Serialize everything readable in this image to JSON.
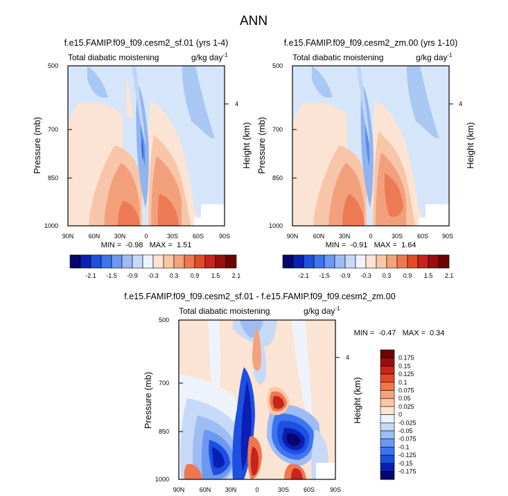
{
  "figure": {
    "title": "ANN"
  },
  "panels": [
    {
      "title": "f.e15.FAMIP.f09_f09.cesm2_sf.01 (yrs 1-4)",
      "left_label": "Total diabatic moistening",
      "units_label": "g/kg day",
      "units_exp": "-1",
      "ylabel": "Pressure (mb)",
      "y2label": "Height (km)",
      "stats": "MIN =  -0.98   MAX =  1.51"
    },
    {
      "title": "f.e15.FAMIP.f09_f09.cesm2_zm.00 (yrs 1-10)",
      "left_label": "Total diabatic moistening",
      "units_label": "g/kg day",
      "units_exp": "-1",
      "ylabel": "Pressure (mb)",
      "y2label": "Height (km)",
      "stats": "MIN =  -0.91   MAX =  1.64"
    },
    {
      "title": "f.e15.FAMIP.f09_f09.cesm2_sf.01 - f.e15.FAMIP.f09_f09.cesm2_zm.00",
      "left_label": "Total diabatic moistening",
      "units_label": "g/kg day",
      "units_exp": "-1",
      "ylabel": "Pressure (mb)",
      "y2label": "Height (km)",
      "stats": "MIN =  -0.47   MAX =  0.34"
    }
  ],
  "axes": {
    "x_ticks": [
      "90N",
      "60N",
      "30N",
      "0",
      "30S",
      "60S",
      "90S"
    ],
    "y_ticks": [
      "500",
      "700",
      "850",
      "1000"
    ],
    "y2_ticks": [
      "4"
    ]
  },
  "colorbars": {
    "main_ticks": [
      "-2.1",
      "-1.5",
      "-0.9",
      "-0.3",
      "0.3",
      "0.9",
      "1.5",
      "2.1"
    ],
    "main_colors": [
      "#06066e",
      "#0a1fb4",
      "#1d4fe0",
      "#3d74f0",
      "#6b98f2",
      "#9dbcf4",
      "#c6d9f7",
      "#eef3fb",
      "#fde4d1",
      "#f9c7a6",
      "#f5a27a",
      "#ef774f",
      "#e54a28",
      "#c9241b",
      "#9c0d0d",
      "#6e0303"
    ],
    "diff_ticks": [
      "0.175",
      "0.15",
      "0.125",
      "0.1",
      "0.075",
      "0.05",
      "0.025",
      "0",
      "-0.025",
      "-0.05",
      "-0.075",
      "-0.1",
      "-0.125",
      "-0.15",
      "-0.175"
    ],
    "diff_colors": [
      "#6e0303",
      "#9c0d0d",
      "#c9241b",
      "#e54a28",
      "#ef774f",
      "#f5a27a",
      "#f9c7a6",
      "#fde4d1",
      "#eef3fb",
      "#c6d9f7",
      "#9dbcf4",
      "#6b98f2",
      "#3d74f0",
      "#1d4fe0",
      "#0a1fb4",
      "#06066e"
    ]
  },
  "chart_data": [
    {
      "type": "heatmap",
      "title": "f.e15.FAMIP.f09_f09.cesm2_sf.01 (yrs 1-4)",
      "variable": "Total diabatic moistening",
      "units": "g/kg day-1",
      "x": [
        "90N",
        "60N",
        "30N",
        "0",
        "30S",
        "60S",
        "90S"
      ],
      "y": [
        500,
        700,
        850,
        1000
      ],
      "y_scale": "log-pressure",
      "min": -0.98,
      "max": 1.51,
      "colorbar_levels": [
        -2.1,
        -1.5,
        -0.9,
        -0.3,
        0.3,
        0.9,
        1.5,
        2.1
      ]
    },
    {
      "type": "heatmap",
      "title": "f.e15.FAMIP.f09_f09.cesm2_zm.00 (yrs 1-10)",
      "variable": "Total diabatic moistening",
      "units": "g/kg day-1",
      "x": [
        "90N",
        "60N",
        "30N",
        "0",
        "30S",
        "60S",
        "90S"
      ],
      "y": [
        500,
        700,
        850,
        1000
      ],
      "y_scale": "log-pressure",
      "min": -0.91,
      "max": 1.64,
      "colorbar_levels": [
        -2.1,
        -1.5,
        -0.9,
        -0.3,
        0.3,
        0.9,
        1.5,
        2.1
      ]
    },
    {
      "type": "heatmap",
      "title": "f.e15.FAMIP.f09_f09.cesm2_sf.01 - f.e15.FAMIP.f09_f09.cesm2_zm.00",
      "variable": "Total diabatic moistening",
      "units": "g/kg day-1",
      "x": [
        "90N",
        "60N",
        "30N",
        "0",
        "30S",
        "60S",
        "90S"
      ],
      "y": [
        500,
        700,
        850,
        1000
      ],
      "y_scale": "log-pressure",
      "min": -0.47,
      "max": 0.34,
      "colorbar_levels": [
        0.175,
        0.15,
        0.125,
        0.1,
        0.075,
        0.05,
        0.025,
        0,
        -0.025,
        -0.05,
        -0.075,
        -0.1,
        -0.125,
        -0.15,
        -0.175
      ]
    }
  ]
}
